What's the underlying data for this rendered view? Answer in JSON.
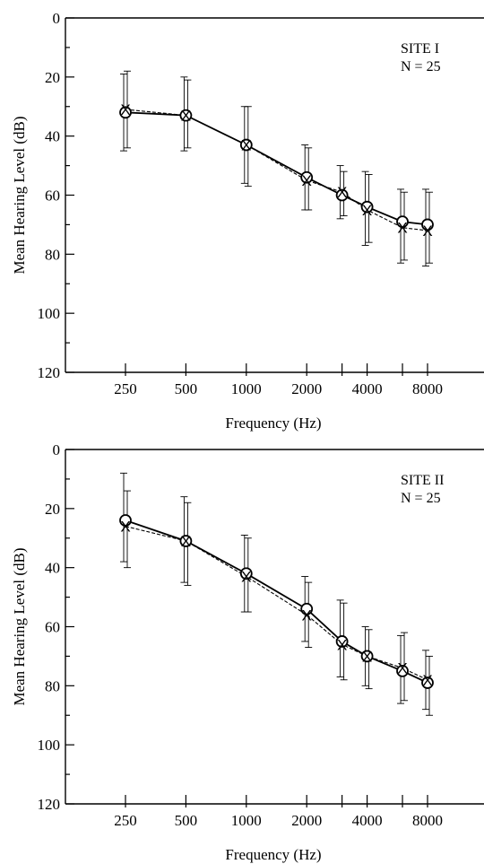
{
  "chart_data": [
    {
      "type": "line",
      "annotation": [
        "SITE I",
        "N = 25"
      ],
      "xlabel": "Frequency (Hz)",
      "ylabel": "Mean Hearing Level (dB)",
      "x_scale": "log",
      "x": [
        250,
        500,
        1000,
        2000,
        3000,
        4000,
        6000,
        8000
      ],
      "x_tick_labels": [
        "250",
        "500",
        "1000",
        "2000",
        "",
        "4000",
        "",
        "8000"
      ],
      "ylim": [
        0,
        120
      ],
      "y_inverted": true,
      "y_ticks": [
        0,
        20,
        40,
        60,
        80,
        100,
        120
      ],
      "series": [
        {
          "marker": "O",
          "line": "solid",
          "values": [
            32,
            33,
            43,
            54,
            60,
            64,
            69,
            70
          ],
          "error_low": [
            19,
            20,
            30,
            43,
            50,
            52,
            58,
            58
          ],
          "error_high": [
            45,
            45,
            56,
            65,
            68,
            77,
            83,
            84
          ]
        },
        {
          "marker": "X",
          "line": "dashed",
          "values": [
            31,
            33,
            43,
            55,
            59,
            65,
            71,
            72
          ],
          "error_low": [
            18,
            21,
            30,
            44,
            52,
            53,
            59,
            59
          ],
          "error_high": [
            44,
            44,
            57,
            65,
            67,
            76,
            82,
            83
          ]
        }
      ]
    },
    {
      "type": "line",
      "annotation": [
        "SITE II",
        "N = 25"
      ],
      "xlabel": "Frequency (Hz)",
      "ylabel": "Mean Hearing Level (dB)",
      "x_scale": "log",
      "x": [
        250,
        500,
        1000,
        2000,
        3000,
        4000,
        6000,
        8000
      ],
      "x_tick_labels": [
        "250",
        "500",
        "1000",
        "2000",
        "",
        "4000",
        "",
        "8000"
      ],
      "ylim": [
        0,
        120
      ],
      "y_inverted": true,
      "y_ticks": [
        0,
        20,
        40,
        60,
        80,
        100,
        120
      ],
      "series": [
        {
          "marker": "O",
          "line": "solid",
          "values": [
            24,
            31,
            42,
            54,
            65,
            70,
            75,
            79
          ],
          "error_low": [
            8,
            16,
            29,
            43,
            51,
            60,
            63,
            68
          ],
          "error_high": [
            38,
            45,
            55,
            65,
            77,
            80,
            86,
            88
          ]
        },
        {
          "marker": "X",
          "line": "dashed",
          "values": [
            26,
            31,
            43,
            56,
            66,
            70,
            74,
            78
          ],
          "error_low": [
            14,
            18,
            30,
            45,
            52,
            61,
            62,
            70
          ],
          "error_high": [
            40,
            46,
            55,
            67,
            78,
            81,
            85,
            90
          ]
        }
      ]
    }
  ]
}
